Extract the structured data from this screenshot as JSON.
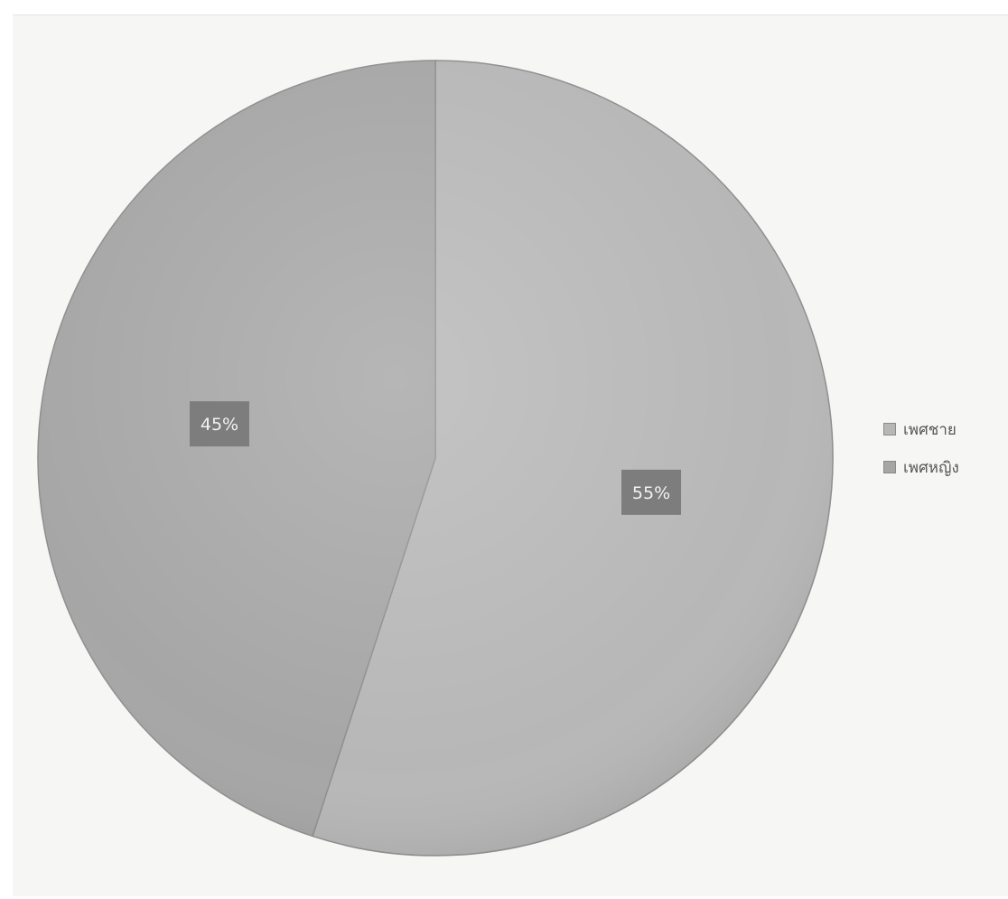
{
  "chart_data": {
    "type": "pie",
    "title": "",
    "slices": [
      {
        "name": "เพศชาย",
        "value": 55,
        "label": "55%",
        "color": "#b7b7b7"
      },
      {
        "name": "เพศหญิง",
        "value": 45,
        "label": "45%",
        "color": "#a6a6a6"
      }
    ],
    "label_box_color": "#7d7d7d",
    "start_angle_deg": 0,
    "direction": "clockwise",
    "legend_position": "right"
  }
}
